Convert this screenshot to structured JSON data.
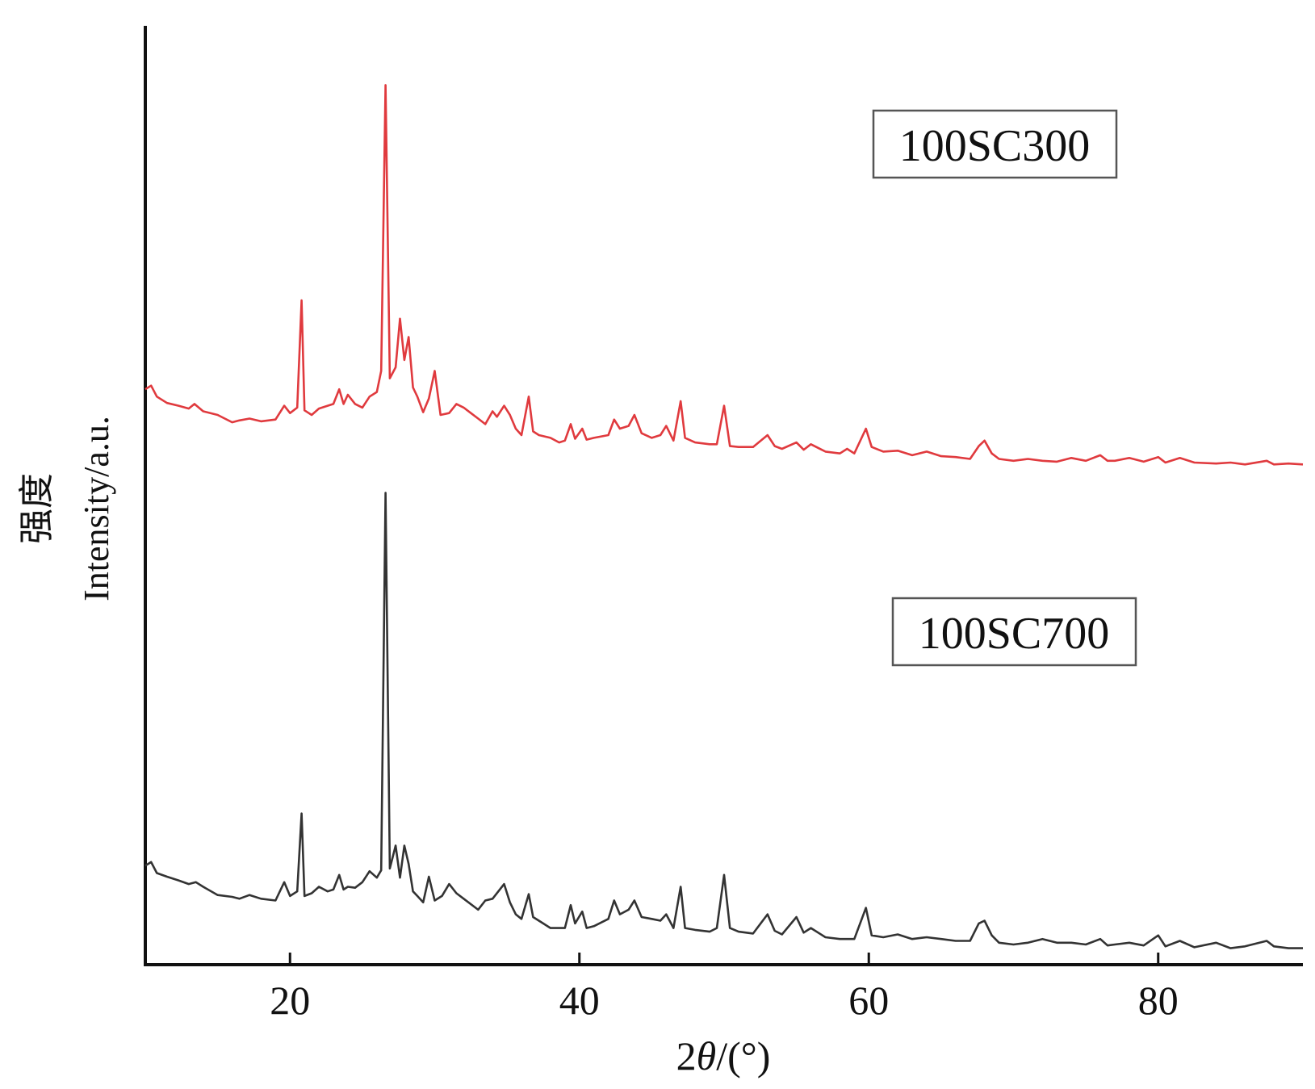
{
  "chart_data": {
    "type": "line",
    "xlabel_prefix": "2",
    "xlabel_symbol": "θ",
    "xlabel_suffix": "/(°)",
    "ylabel_cn": "强度",
    "ylabel_en": "Intensity/a.u.",
    "xlim": [
      10,
      90
    ],
    "ylim": [
      0,
      1
    ],
    "xticks": [
      "20",
      "40",
      "60",
      "80"
    ],
    "grid": false,
    "y_ticks_shown": false,
    "series": [
      {
        "name": "100SC300",
        "color": "#e03a3e",
        "points": [
          [
            10.0,
            0.628
          ],
          [
            10.4,
            0.632
          ],
          [
            10.8,
            0.62
          ],
          [
            11.5,
            0.613
          ],
          [
            12.3,
            0.61
          ],
          [
            13.0,
            0.607
          ],
          [
            13.4,
            0.612
          ],
          [
            14.0,
            0.604
          ],
          [
            15.0,
            0.6
          ],
          [
            16.0,
            0.592
          ],
          [
            16.5,
            0.594
          ],
          [
            17.2,
            0.596
          ],
          [
            18.0,
            0.593
          ],
          [
            19.0,
            0.595
          ],
          [
            19.6,
            0.61
          ],
          [
            20.0,
            0.602
          ],
          [
            20.5,
            0.608
          ],
          [
            20.8,
            0.725
          ],
          [
            21.0,
            0.605
          ],
          [
            21.5,
            0.6
          ],
          [
            22.0,
            0.607
          ],
          [
            22.6,
            0.61
          ],
          [
            23.0,
            0.612
          ],
          [
            23.4,
            0.628
          ],
          [
            23.7,
            0.612
          ],
          [
            24.0,
            0.622
          ],
          [
            24.5,
            0.612
          ],
          [
            25.0,
            0.608
          ],
          [
            25.5,
            0.62
          ],
          [
            26.0,
            0.625
          ],
          [
            26.3,
            0.648
          ],
          [
            26.6,
            0.96
          ],
          [
            26.9,
            0.64
          ],
          [
            27.3,
            0.652
          ],
          [
            27.6,
            0.705
          ],
          [
            27.9,
            0.66
          ],
          [
            28.2,
            0.685
          ],
          [
            28.5,
            0.63
          ],
          [
            28.8,
            0.62
          ],
          [
            29.2,
            0.603
          ],
          [
            29.6,
            0.618
          ],
          [
            30.0,
            0.648
          ],
          [
            30.4,
            0.6
          ],
          [
            31.0,
            0.602
          ],
          [
            31.5,
            0.612
          ],
          [
            32.0,
            0.608
          ],
          [
            32.5,
            0.602
          ],
          [
            33.0,
            0.596
          ],
          [
            33.5,
            0.59
          ],
          [
            34.0,
            0.604
          ],
          [
            34.3,
            0.598
          ],
          [
            34.8,
            0.61
          ],
          [
            35.2,
            0.6
          ],
          [
            35.6,
            0.585
          ],
          [
            36.0,
            0.578
          ],
          [
            36.5,
            0.62
          ],
          [
            36.8,
            0.582
          ],
          [
            37.2,
            0.578
          ],
          [
            38.0,
            0.575
          ],
          [
            38.6,
            0.57
          ],
          [
            39.0,
            0.572
          ],
          [
            39.4,
            0.59
          ],
          [
            39.7,
            0.574
          ],
          [
            40.2,
            0.585
          ],
          [
            40.5,
            0.573
          ],
          [
            41.0,
            0.575
          ],
          [
            42.0,
            0.578
          ],
          [
            42.4,
            0.595
          ],
          [
            42.8,
            0.585
          ],
          [
            43.4,
            0.588
          ],
          [
            43.8,
            0.6
          ],
          [
            44.3,
            0.58
          ],
          [
            45.0,
            0.575
          ],
          [
            45.6,
            0.578
          ],
          [
            46.0,
            0.588
          ],
          [
            46.5,
            0.572
          ],
          [
            47.0,
            0.615
          ],
          [
            47.3,
            0.575
          ],
          [
            48.0,
            0.57
          ],
          [
            49.0,
            0.568
          ],
          [
            49.5,
            0.568
          ],
          [
            50.0,
            0.61
          ],
          [
            50.4,
            0.566
          ],
          [
            51.0,
            0.565
          ],
          [
            52.0,
            0.565
          ],
          [
            53.0,
            0.578
          ],
          [
            53.5,
            0.566
          ],
          [
            54.0,
            0.563
          ],
          [
            55.0,
            0.57
          ],
          [
            55.5,
            0.562
          ],
          [
            56.0,
            0.568
          ],
          [
            57.0,
            0.56
          ],
          [
            58.0,
            0.558
          ],
          [
            58.5,
            0.563
          ],
          [
            59.0,
            0.558
          ],
          [
            59.8,
            0.585
          ],
          [
            60.2,
            0.565
          ],
          [
            61.0,
            0.56
          ],
          [
            62.0,
            0.561
          ],
          [
            63.0,
            0.556
          ],
          [
            64.0,
            0.56
          ],
          [
            65.0,
            0.555
          ],
          [
            66.0,
            0.554
          ],
          [
            67.0,
            0.552
          ],
          [
            67.6,
            0.566
          ],
          [
            68.0,
            0.572
          ],
          [
            68.5,
            0.558
          ],
          [
            69.0,
            0.552
          ],
          [
            70.0,
            0.55
          ],
          [
            71.0,
            0.552
          ],
          [
            72.0,
            0.55
          ],
          [
            73.0,
            0.549
          ],
          [
            74.0,
            0.553
          ],
          [
            75.0,
            0.55
          ],
          [
            76.0,
            0.556
          ],
          [
            76.5,
            0.55
          ],
          [
            77.0,
            0.55
          ],
          [
            78.0,
            0.553
          ],
          [
            79.0,
            0.549
          ],
          [
            80.0,
            0.554
          ],
          [
            80.5,
            0.548
          ],
          [
            81.5,
            0.553
          ],
          [
            82.5,
            0.548
          ],
          [
            84.0,
            0.547
          ],
          [
            85.0,
            0.548
          ],
          [
            86.0,
            0.546
          ],
          [
            87.5,
            0.55
          ],
          [
            88.0,
            0.546
          ],
          [
            89.0,
            0.547
          ],
          [
            90.0,
            0.546
          ]
        ]
      },
      {
        "name": "100SC700",
        "color": "#333333",
        "points": [
          [
            10.0,
            0.108
          ],
          [
            10.4,
            0.112
          ],
          [
            10.8,
            0.1
          ],
          [
            11.5,
            0.096
          ],
          [
            12.3,
            0.092
          ],
          [
            13.0,
            0.088
          ],
          [
            13.5,
            0.09
          ],
          [
            14.0,
            0.085
          ],
          [
            15.0,
            0.076
          ],
          [
            16.0,
            0.074
          ],
          [
            16.5,
            0.072
          ],
          [
            17.2,
            0.076
          ],
          [
            18.0,
            0.072
          ],
          [
            19.0,
            0.07
          ],
          [
            19.6,
            0.09
          ],
          [
            20.0,
            0.075
          ],
          [
            20.5,
            0.08
          ],
          [
            20.8,
            0.165
          ],
          [
            21.0,
            0.075
          ],
          [
            21.5,
            0.078
          ],
          [
            22.0,
            0.085
          ],
          [
            22.6,
            0.08
          ],
          [
            23.0,
            0.082
          ],
          [
            23.4,
            0.098
          ],
          [
            23.7,
            0.082
          ],
          [
            24.0,
            0.085
          ],
          [
            24.5,
            0.084
          ],
          [
            25.0,
            0.09
          ],
          [
            25.5,
            0.102
          ],
          [
            26.0,
            0.095
          ],
          [
            26.3,
            0.103
          ],
          [
            26.6,
            0.515
          ],
          [
            26.9,
            0.105
          ],
          [
            27.3,
            0.13
          ],
          [
            27.6,
            0.095
          ],
          [
            27.9,
            0.13
          ],
          [
            28.2,
            0.11
          ],
          [
            28.5,
            0.08
          ],
          [
            28.8,
            0.075
          ],
          [
            29.2,
            0.068
          ],
          [
            29.6,
            0.096
          ],
          [
            30.0,
            0.07
          ],
          [
            30.5,
            0.075
          ],
          [
            31.0,
            0.088
          ],
          [
            31.5,
            0.078
          ],
          [
            32.0,
            0.072
          ],
          [
            33.0,
            0.06
          ],
          [
            33.5,
            0.07
          ],
          [
            34.0,
            0.072
          ],
          [
            34.8,
            0.088
          ],
          [
            35.2,
            0.068
          ],
          [
            35.6,
            0.055
          ],
          [
            36.0,
            0.05
          ],
          [
            36.5,
            0.077
          ],
          [
            36.8,
            0.052
          ],
          [
            37.5,
            0.045
          ],
          [
            38.0,
            0.04
          ],
          [
            39.0,
            0.04
          ],
          [
            39.4,
            0.065
          ],
          [
            39.7,
            0.045
          ],
          [
            40.2,
            0.058
          ],
          [
            40.5,
            0.04
          ],
          [
            41.0,
            0.042
          ],
          [
            42.0,
            0.05
          ],
          [
            42.4,
            0.07
          ],
          [
            42.8,
            0.055
          ],
          [
            43.4,
            0.06
          ],
          [
            43.8,
            0.07
          ],
          [
            44.3,
            0.052
          ],
          [
            45.0,
            0.05
          ],
          [
            45.6,
            0.048
          ],
          [
            46.0,
            0.055
          ],
          [
            46.5,
            0.04
          ],
          [
            47.0,
            0.085
          ],
          [
            47.3,
            0.04
          ],
          [
            48.0,
            0.038
          ],
          [
            49.0,
            0.036
          ],
          [
            49.5,
            0.04
          ],
          [
            50.0,
            0.098
          ],
          [
            50.4,
            0.04
          ],
          [
            51.0,
            0.036
          ],
          [
            52.0,
            0.034
          ],
          [
            53.0,
            0.055
          ],
          [
            53.5,
            0.037
          ],
          [
            54.0,
            0.033
          ],
          [
            55.0,
            0.052
          ],
          [
            55.5,
            0.035
          ],
          [
            56.0,
            0.04
          ],
          [
            57.0,
            0.03
          ],
          [
            58.0,
            0.028
          ],
          [
            59.0,
            0.028
          ],
          [
            59.8,
            0.062
          ],
          [
            60.2,
            0.032
          ],
          [
            61.0,
            0.03
          ],
          [
            62.0,
            0.033
          ],
          [
            63.0,
            0.028
          ],
          [
            64.0,
            0.03
          ],
          [
            65.0,
            0.028
          ],
          [
            66.0,
            0.026
          ],
          [
            67.0,
            0.026
          ],
          [
            67.6,
            0.045
          ],
          [
            68.0,
            0.048
          ],
          [
            68.5,
            0.032
          ],
          [
            69.0,
            0.024
          ],
          [
            70.0,
            0.022
          ],
          [
            71.0,
            0.024
          ],
          [
            72.0,
            0.028
          ],
          [
            73.0,
            0.024
          ],
          [
            74.0,
            0.024
          ],
          [
            75.0,
            0.022
          ],
          [
            76.0,
            0.028
          ],
          [
            76.5,
            0.021
          ],
          [
            77.0,
            0.022
          ],
          [
            78.0,
            0.024
          ],
          [
            79.0,
            0.021
          ],
          [
            80.0,
            0.032
          ],
          [
            80.5,
            0.02
          ],
          [
            81.5,
            0.026
          ],
          [
            82.5,
            0.019
          ],
          [
            84.0,
            0.024
          ],
          [
            85.0,
            0.018
          ],
          [
            86.0,
            0.02
          ],
          [
            87.5,
            0.026
          ],
          [
            88.0,
            0.02
          ],
          [
            89.0,
            0.018
          ],
          [
            90.0,
            0.018
          ]
        ]
      }
    ],
    "legend_boxes": [
      {
        "label": "100SC300",
        "series": "100SC300"
      },
      {
        "label": "100SC700",
        "series": "100SC700"
      }
    ]
  }
}
